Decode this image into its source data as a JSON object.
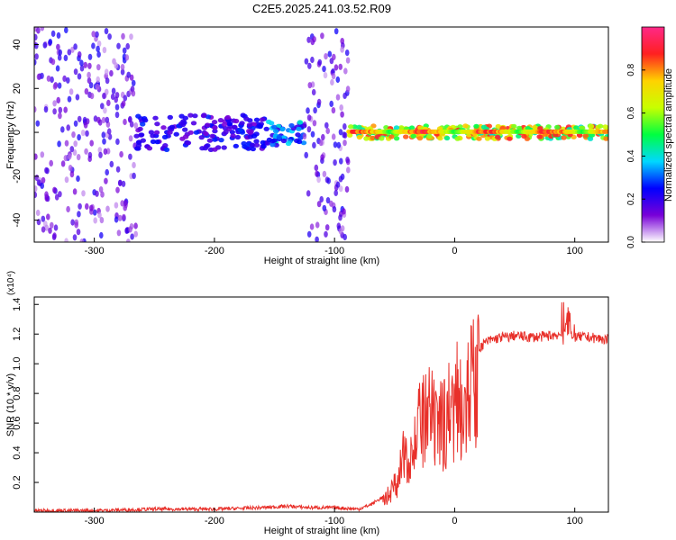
{
  "figure_title": "C2E5.2025.241.03.52.R09",
  "chart_data": [
    {
      "type": "heatmap",
      "title": "C2E5.2025.241.03.52.R09",
      "xlabel": "Height of straight line (km)",
      "ylabel": "Frequency (Hz)",
      "xlim": [
        -350,
        128
      ],
      "ylim": [
        -50,
        48
      ],
      "xticks": [
        -300,
        -200,
        -100,
        0,
        100
      ],
      "yticks": [
        -40,
        -20,
        0,
        20,
        40
      ],
      "colorbar": {
        "label": "Normalized spectral amplitude",
        "range": [
          0,
          1
        ],
        "ticks": [
          0.0,
          0.2,
          0.4,
          0.6,
          0.8
        ],
        "tick_labels": [
          "0.0",
          "0.2",
          "0.4",
          "0.6",
          "0.8"
        ],
        "colormap": [
          "#ffffff",
          "#7800d8",
          "#0000ff",
          "#00d8ff",
          "#00ff40",
          "#c8ff00",
          "#ffd200",
          "#ff2020",
          "#ff2888"
        ]
      },
      "regions": [
        {
          "x": [
            -350,
            -265
          ],
          "description_level": 0.15,
          "freq_spread": [
            -50,
            48
          ]
        },
        {
          "x": [
            -265,
            -155
          ],
          "description_level": 0.2,
          "freq_band": [
            -8,
            8
          ]
        },
        {
          "x": [
            -155,
            -125
          ],
          "description_level": 0.3,
          "freq_band": [
            -6,
            5
          ]
        },
        {
          "x": [
            -125,
            -88
          ],
          "description_level": 0.15,
          "freq_spread": [
            -50,
            48
          ]
        },
        {
          "x": [
            -88,
            128
          ],
          "description_level": 0.65,
          "freq_band": [
            -3,
            3
          ]
        }
      ]
    },
    {
      "type": "line",
      "xlabel": "Height of straight line (km)",
      "ylabel": "SNR (10 * v/v)",
      "y_multiplier": "(x10⁴)",
      "xlim": [
        -350,
        128
      ],
      "ylim": [
        0,
        1.45
      ],
      "xticks": [
        -300,
        -200,
        -100,
        0,
        100
      ],
      "yticks": [
        0.2,
        0.4,
        0.6,
        0.8,
        1.0,
        1.2,
        1.4
      ],
      "ytick_labels": [
        "0.2",
        "0.4",
        "0.6",
        "0.8",
        "1.0",
        "1.2",
        "1.4"
      ],
      "series": [
        {
          "color": "#e8302a",
          "x": [
            -350,
            -300,
            -250,
            -200,
            -160,
            -140,
            -120,
            -100,
            -80,
            -70,
            -60,
            -55,
            -50,
            -45,
            -40,
            -35,
            -30,
            -25,
            -20,
            -15,
            -10,
            -5,
            0,
            5,
            10,
            15,
            20,
            25,
            30,
            35,
            40,
            45,
            50,
            60,
            70,
            80,
            90,
            95,
            100,
            110,
            120,
            128
          ],
          "values": [
            0.01,
            0.01,
            0.02,
            0.02,
            0.03,
            0.04,
            0.03,
            0.03,
            0.02,
            0.05,
            0.1,
            0.15,
            0.22,
            0.35,
            0.55,
            0.5,
            0.7,
            0.75,
            0.8,
            0.65,
            0.75,
            0.85,
            0.9,
            0.95,
            1.02,
            1.05,
            1.1,
            1.14,
            1.16,
            1.17,
            1.18,
            1.18,
            1.19,
            1.18,
            1.18,
            1.19,
            1.2,
            1.23,
            1.18,
            1.18,
            1.17,
            1.16
          ]
        }
      ]
    }
  ]
}
